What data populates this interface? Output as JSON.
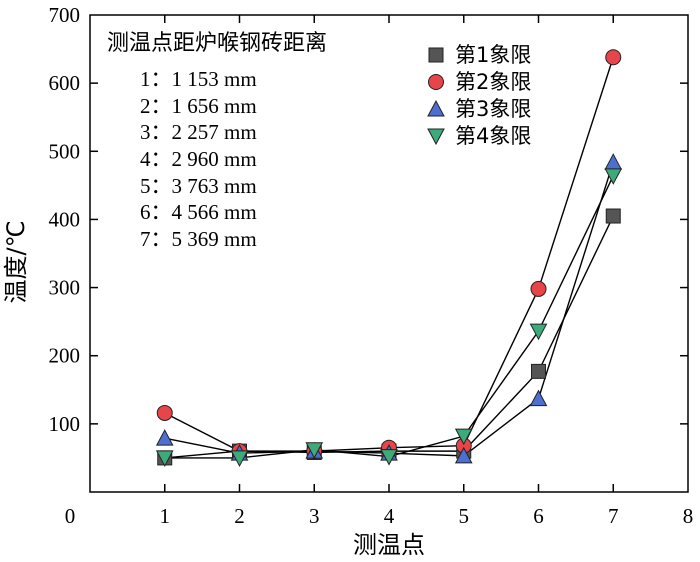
{
  "chart_data": {
    "type": "line",
    "xlabel": "测温点",
    "ylabel": "温度/℃",
    "xlim": [
      0,
      8
    ],
    "ylim": [
      0,
      700
    ],
    "xticks": [
      0,
      1,
      2,
      3,
      4,
      5,
      6,
      7,
      8
    ],
    "yticks": [
      0,
      100,
      200,
      300,
      400,
      500,
      600,
      700
    ],
    "grid": false,
    "legend_position": "top-right",
    "annotation": {
      "title": "测温点距炉喉钢砖距离",
      "lines": [
        "1：1 153 mm",
        "2：1 656 mm",
        "3：2 257 mm",
        "4：2 960 mm",
        "5：3 763 mm",
        "6：4 566 mm",
        "7：5 369 mm"
      ]
    },
    "x": [
      1,
      2,
      3,
      4,
      5,
      6,
      7
    ],
    "series": [
      {
        "name": "第1象限",
        "marker": "square",
        "color": "#555555",
        "values": [
          50,
          60,
          58,
          60,
          60,
          177,
          405
        ]
      },
      {
        "name": "第2象限",
        "marker": "circle",
        "color": "#e8454a",
        "values": [
          116,
          60,
          60,
          65,
          68,
          298,
          638
        ]
      },
      {
        "name": "第3象限",
        "marker": "triangle-up",
        "color": "#4d6fd1",
        "values": [
          79,
          57,
          60,
          57,
          53,
          137,
          484
        ]
      },
      {
        "name": "第4象限",
        "marker": "triangle-down",
        "color": "#3daa7a",
        "values": [
          50,
          50,
          62,
          52,
          82,
          236,
          464
        ]
      }
    ]
  }
}
